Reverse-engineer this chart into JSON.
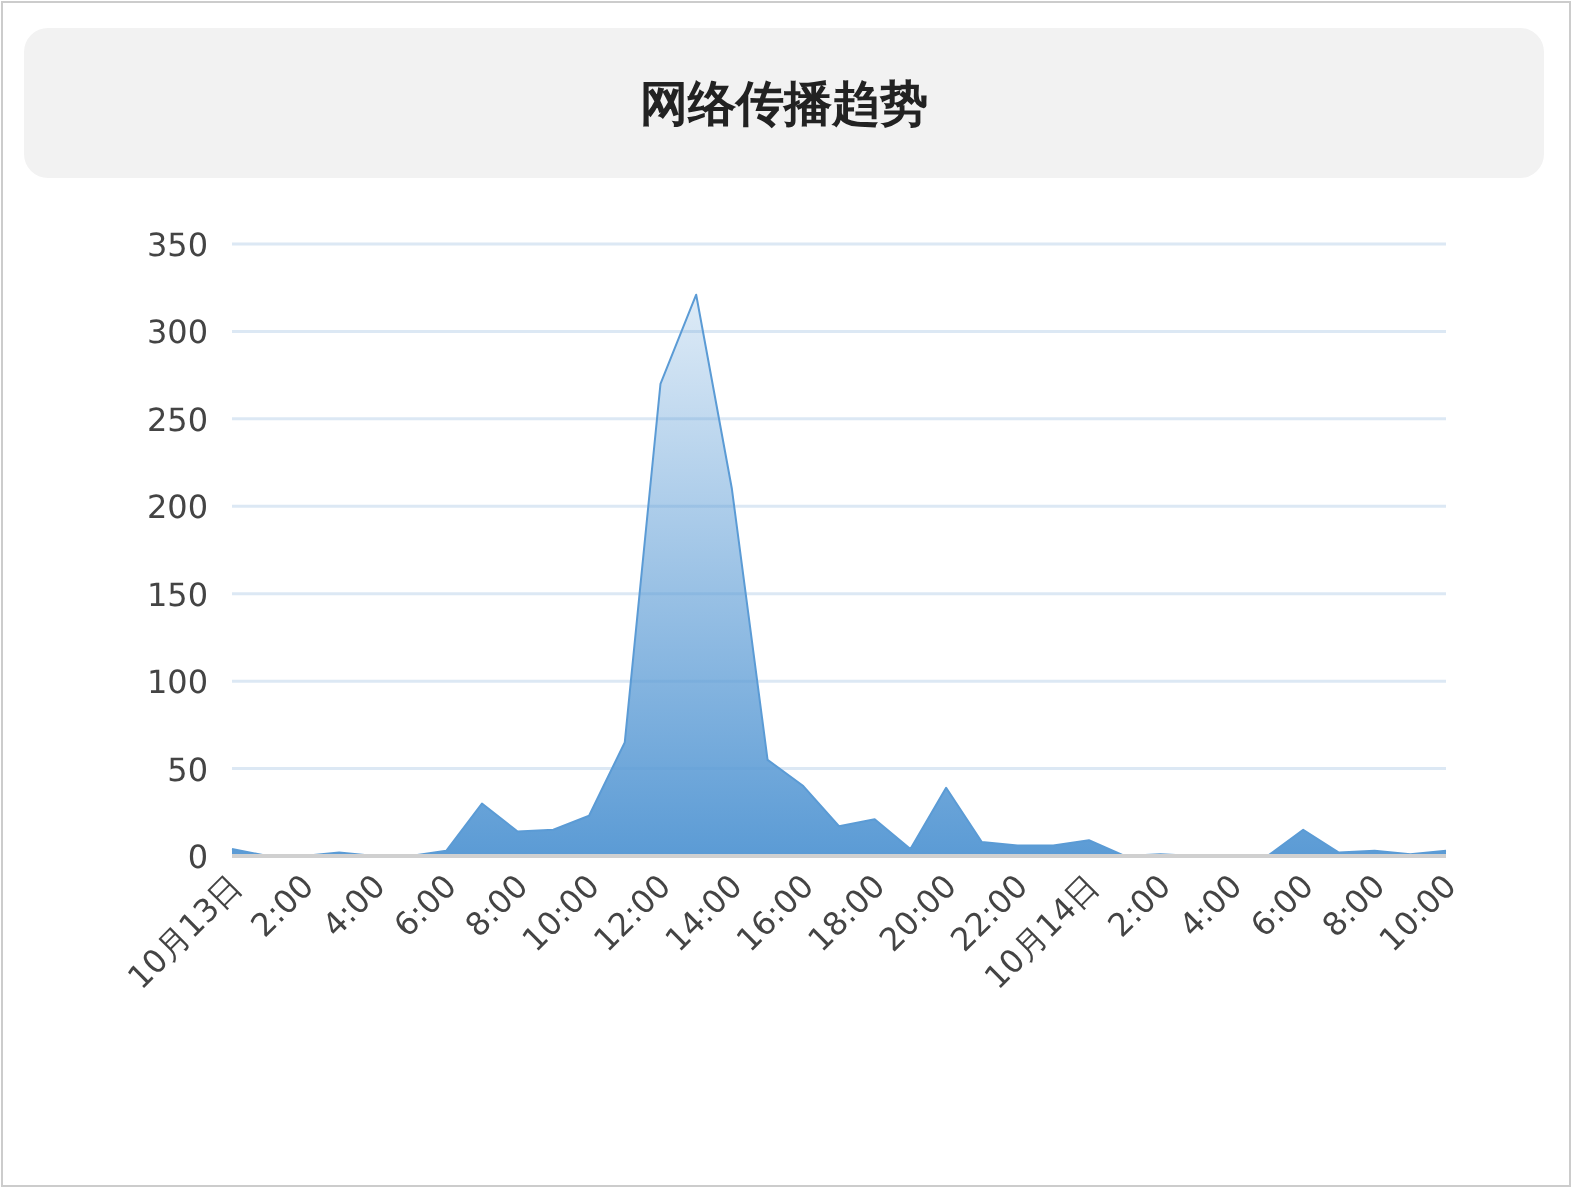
{
  "chart_data": {
    "type": "area",
    "title": "网络传播趋势",
    "categories": [
      "10月13日",
      null,
      "2:00",
      null,
      "4:00",
      null,
      "6:00",
      null,
      "8:00",
      null,
      "10:00",
      null,
      "12:00",
      null,
      "14:00",
      null,
      "16:00",
      null,
      "18:00",
      null,
      "20:00",
      null,
      "22:00",
      null,
      "10月14日",
      null,
      "2:00",
      null,
      "4:00",
      null,
      "6:00",
      null,
      "8:00",
      null,
      "10:00"
    ],
    "values": [
      4,
      0,
      0,
      2,
      0,
      0,
      3,
      30,
      14,
      15,
      23,
      65,
      270,
      321,
      210,
      55,
      40,
      17,
      21,
      4,
      39,
      8,
      6,
      6,
      9,
      0,
      1,
      0,
      0,
      0,
      15,
      2,
      3,
      1,
      3
    ],
    "color": "#5b9bd5",
    "ylim": [
      0,
      350
    ],
    "yticks": [
      0,
      50,
      100,
      150,
      200,
      250,
      300,
      350
    ],
    "grid": "y"
  }
}
